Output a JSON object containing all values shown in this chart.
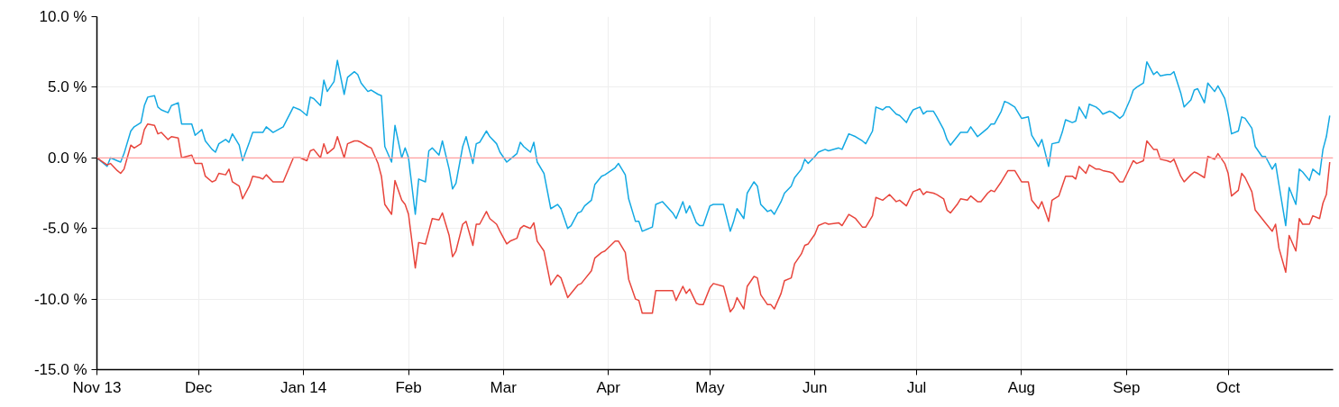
{
  "chart_data": {
    "type": "line",
    "x": [
      "2013-11-01",
      "2013-11-04",
      "2013-11-05",
      "2013-11-07",
      "2013-11-08",
      "2013-11-09",
      "2013-11-11",
      "2013-11-12",
      "2013-11-14",
      "2013-11-15",
      "2013-11-16",
      "2013-11-18",
      "2013-11-19",
      "2013-11-20",
      "2013-11-22",
      "2013-11-23",
      "2013-11-25",
      "2013-11-26",
      "2013-11-29",
      "2013-11-30",
      "2013-12-02",
      "2013-12-03",
      "2013-12-05",
      "2013-12-06",
      "2013-12-07",
      "2013-12-09",
      "2013-12-10",
      "2013-12-11",
      "2013-12-13",
      "2013-12-14",
      "2013-12-16",
      "2013-12-17",
      "2013-12-19",
      "2013-12-20",
      "2013-12-21",
      "2013-12-23",
      "2013-12-26",
      "2013-12-29",
      "2013-12-31",
      "2014-01-02",
      "2014-01-03",
      "2014-01-04",
      "2014-01-06",
      "2014-01-07",
      "2014-01-08",
      "2014-01-10",
      "2014-01-11",
      "2014-01-13",
      "2014-01-14",
      "2014-01-16",
      "2014-01-17",
      "2014-01-18",
      "2014-01-20",
      "2014-01-21",
      "2014-01-23",
      "2014-01-24",
      "2014-01-25",
      "2014-01-27",
      "2014-01-28",
      "2014-01-30",
      "2014-01-31",
      "2014-02-01",
      "2014-02-03",
      "2014-02-04",
      "2014-02-06",
      "2014-02-07",
      "2014-02-08",
      "2014-02-10",
      "2014-02-11",
      "2014-02-13",
      "2014-02-14",
      "2014-02-15",
      "2014-02-17",
      "2014-02-18",
      "2014-02-20",
      "2014-02-21",
      "2014-02-22",
      "2014-02-24",
      "2014-02-25",
      "2014-02-27",
      "2014-02-28",
      "2014-03-02",
      "2014-03-03",
      "2014-03-05",
      "2014-03-06",
      "2014-03-07",
      "2014-03-09",
      "2014-03-10",
      "2014-03-11",
      "2014-03-13",
      "2014-03-15",
      "2014-03-17",
      "2014-03-18",
      "2014-03-20",
      "2014-03-21",
      "2014-03-23",
      "2014-03-24",
      "2014-03-25",
      "2014-03-27",
      "2014-03-28",
      "2014-03-30",
      "2014-03-31",
      "2014-04-03",
      "2014-04-04",
      "2014-04-06",
      "2014-04-07",
      "2014-04-09",
      "2014-04-10",
      "2014-04-11",
      "2014-04-14",
      "2014-04-15",
      "2014-04-17",
      "2014-04-20",
      "2014-04-21",
      "2014-04-23",
      "2014-04-24",
      "2014-04-25",
      "2014-04-27",
      "2014-04-28",
      "2014-04-29",
      "2014-05-01",
      "2014-05-02",
      "2014-05-05",
      "2014-05-07",
      "2014-05-08",
      "2014-05-09",
      "2014-05-11",
      "2014-05-12",
      "2014-05-14",
      "2014-05-15",
      "2014-05-16",
      "2014-05-18",
      "2014-05-19",
      "2014-05-20",
      "2014-05-22",
      "2014-05-23",
      "2014-05-25",
      "2014-05-26",
      "2014-05-28",
      "2014-05-29",
      "2014-05-30",
      "2014-06-01",
      "2014-06-02",
      "2014-06-04",
      "2014-06-05",
      "2014-06-08",
      "2014-06-09",
      "2014-06-11",
      "2014-06-13",
      "2014-06-15",
      "2014-06-16",
      "2014-06-18",
      "2014-06-19",
      "2014-06-21",
      "2014-06-22",
      "2014-06-23",
      "2014-06-25",
      "2014-06-26",
      "2014-06-28",
      "2014-06-29",
      "2014-06-30",
      "2014-07-02",
      "2014-07-03",
      "2014-07-04",
      "2014-07-06",
      "2014-07-07",
      "2014-07-09",
      "2014-07-10",
      "2014-07-11",
      "2014-07-13",
      "2014-07-14",
      "2014-07-16",
      "2014-07-17",
      "2014-07-19",
      "2014-07-20",
      "2014-07-22",
      "2014-07-23",
      "2014-07-24",
      "2014-07-26",
      "2014-07-27",
      "2014-07-28",
      "2014-07-30",
      "2014-08-01",
      "2014-08-03",
      "2014-08-04",
      "2014-08-06",
      "2014-08-07",
      "2014-08-09",
      "2014-08-10",
      "2014-08-12",
      "2014-08-13",
      "2014-08-14",
      "2014-08-16",
      "2014-08-17",
      "2014-08-18",
      "2014-08-20",
      "2014-08-21",
      "2014-08-23",
      "2014-08-24",
      "2014-08-25",
      "2014-08-27",
      "2014-08-28",
      "2014-08-30",
      "2014-08-31",
      "2014-09-02",
      "2014-09-03",
      "2014-09-04",
      "2014-09-06",
      "2014-09-07",
      "2014-09-09",
      "2014-09-10",
      "2014-09-11",
      "2014-09-13",
      "2014-09-14",
      "2014-09-15",
      "2014-09-17",
      "2014-09-18",
      "2014-09-20",
      "2014-09-21",
      "2014-09-22",
      "2014-09-24",
      "2014-09-25",
      "2014-09-27",
      "2014-09-28",
      "2014-09-30",
      "2014-10-01",
      "2014-10-02",
      "2014-10-04",
      "2014-10-05",
      "2014-10-06",
      "2014-10-08",
      "2014-10-09",
      "2014-10-11",
      "2014-10-12",
      "2014-10-14",
      "2014-10-15",
      "2014-10-16",
      "2014-10-18",
      "2014-10-19",
      "2014-10-21",
      "2014-10-22",
      "2014-10-23",
      "2014-10-25",
      "2014-10-26",
      "2014-10-28",
      "2014-10-29",
      "2014-10-30",
      "2014-10-31"
    ],
    "series": [
      {
        "color": "#14a9e3",
        "values": [
          0,
          -0.6,
          0,
          -0.2,
          -0.3,
          0.3,
          1.9,
          2.2,
          2.5,
          3.7,
          4.3,
          4.4,
          3.6,
          3.4,
          3.2,
          3.7,
          3.9,
          2.4,
          2.4,
          1.6,
          2.0,
          1.2,
          0.6,
          0.4,
          1.0,
          1.3,
          1.1,
          1.7,
          0.9,
          -0.2,
          1.1,
          1.8,
          1.8,
          1.8,
          2.2,
          1.8,
          2.2,
          3.6,
          3.4,
          3.0,
          4.3,
          4.2,
          3.7,
          5.5,
          4.7,
          5.4,
          6.9,
          4.5,
          5.7,
          6.1,
          5.9,
          5.3,
          4.7,
          4.8,
          4.5,
          4.4,
          0.8,
          -0.3,
          2.3,
          0.0,
          0.7,
          0.0,
          -4.0,
          -1.5,
          -1.7,
          0.5,
          0.7,
          0.2,
          1.2,
          -0.8,
          -2.2,
          -1.8,
          0.8,
          1.5,
          -0.4,
          1.0,
          1.1,
          1.9,
          1.5,
          1.0,
          0.4,
          -0.3,
          -0.1,
          0.3,
          1.1,
          0.8,
          0.4,
          1.1,
          -0.3,
          -1.1,
          -3.6,
          -3.3,
          -3.6,
          -5.0,
          -4.8,
          -3.9,
          -3.8,
          -3.4,
          -3.0,
          -1.9,
          -1.3,
          -1.2,
          -0.7,
          -0.4,
          -1.2,
          -2.9,
          -4.5,
          -4.5,
          -5.2,
          -4.9,
          -3.3,
          -3.1,
          -3.9,
          -4.3,
          -3.1,
          -3.9,
          -3.4,
          -4.6,
          -4.8,
          -4.8,
          -3.4,
          -3.3,
          -3.3,
          -5.2,
          -4.5,
          -3.6,
          -4.3,
          -2.5,
          -1.7,
          -2.0,
          -3.3,
          -3.8,
          -3.7,
          -4.0,
          -3.1,
          -2.5,
          -2.0,
          -1.4,
          -0.8,
          -0.1,
          -0.4,
          0.1,
          0.4,
          0.6,
          0.5,
          0.7,
          0.6,
          1.7,
          1.5,
          1.2,
          1.0,
          1.9,
          3.6,
          3.4,
          3.6,
          3.6,
          3.1,
          3.0,
          2.5,
          3.0,
          3.4,
          3.6,
          3.1,
          3.3,
          3.3,
          2.9,
          2.0,
          1.3,
          0.9,
          1.5,
          1.8,
          1.8,
          2.2,
          1.5,
          1.7,
          2.1,
          2.4,
          2.4,
          3.3,
          4.0,
          3.9,
          3.6,
          2.8,
          2.9,
          1.6,
          0.8,
          1.3,
          -0.6,
          1.0,
          1.1,
          1.8,
          2.7,
          2.5,
          2.6,
          3.6,
          2.8,
          3.8,
          3.6,
          3.4,
          3.1,
          3.3,
          3.2,
          2.8,
          3.0,
          4.1,
          4.8,
          5.0,
          5.3,
          6.8,
          5.9,
          6.1,
          5.8,
          5.9,
          5.9,
          6.1,
          4.6,
          3.6,
          4.1,
          4.8,
          4.9,
          3.9,
          5.3,
          4.7,
          5.1,
          4.2,
          3.1,
          1.7,
          1.9,
          2.9,
          2.8,
          2.1,
          0.8,
          0.1,
          0.1,
          -0.8,
          -0.4,
          -1.9,
          -4.8,
          -2.1,
          -3.3,
          -0.8,
          -1.0,
          -1.6,
          -0.8,
          -1.2,
          0.6,
          1.5,
          3.0
        ]
      },
      {
        "color": "#e8453c",
        "values": [
          0,
          -0.5,
          -0.4,
          -0.9,
          -1.1,
          -0.8,
          0.9,
          0.7,
          1.0,
          2.0,
          2.4,
          2.3,
          1.7,
          1.8,
          1.3,
          1.5,
          1.4,
          0,
          0.2,
          -0.4,
          -0.4,
          -1.3,
          -1.7,
          -1.6,
          -1.1,
          -1.2,
          -0.8,
          -1.7,
          -2.0,
          -2.9,
          -2.0,
          -1.3,
          -1.4,
          -1.5,
          -1.2,
          -1.7,
          -1.7,
          0,
          0,
          -0.2,
          0.5,
          0.6,
          0,
          1.0,
          0.3,
          0.7,
          1.5,
          0,
          1.0,
          1.2,
          1.2,
          1.1,
          0.8,
          0.7,
          -0.4,
          -1.3,
          -3.3,
          -4.0,
          -1.6,
          -3.0,
          -3.3,
          -4.0,
          -7.8,
          -6.0,
          -6.1,
          -5.2,
          -4.3,
          -4.4,
          -3.9,
          -5.5,
          -7.0,
          -6.6,
          -4.7,
          -4.5,
          -6.2,
          -4.7,
          -4.7,
          -3.8,
          -4.3,
          -4.7,
          -5.2,
          -6.1,
          -5.9,
          -5.7,
          -5.0,
          -4.8,
          -5.0,
          -4.6,
          -5.9,
          -6.6,
          -9.0,
          -8.3,
          -8.5,
          -9.9,
          -9.6,
          -9.0,
          -8.9,
          -8.6,
          -8.0,
          -7.1,
          -6.7,
          -6.6,
          -5.9,
          -5.9,
          -6.7,
          -8.6,
          -10.0,
          -10.1,
          -11.0,
          -11.0,
          -9.4,
          -9.4,
          -9.4,
          -10.1,
          -9.1,
          -9.6,
          -9.3,
          -10.3,
          -10.4,
          -10.4,
          -9.2,
          -8.9,
          -9.1,
          -10.9,
          -10.6,
          -9.9,
          -10.7,
          -9.1,
          -8.4,
          -8.5,
          -9.7,
          -10.4,
          -10.4,
          -10.7,
          -9.6,
          -8.7,
          -8.5,
          -7.5,
          -6.8,
          -6.2,
          -6.1,
          -5.4,
          -4.8,
          -4.6,
          -4.7,
          -4.6,
          -4.8,
          -4.0,
          -4.3,
          -4.9,
          -4.9,
          -4.1,
          -2.8,
          -3.0,
          -2.8,
          -2.6,
          -3.1,
          -3.0,
          -3.4,
          -2.9,
          -2.4,
          -2.2,
          -2.6,
          -2.4,
          -2.5,
          -2.6,
          -2.9,
          -3.7,
          -3.9,
          -3.3,
          -2.9,
          -3.0,
          -2.7,
          -3.1,
          -3.1,
          -2.5,
          -2.3,
          -2.4,
          -1.7,
          -1.3,
          -0.9,
          -0.9,
          -1.7,
          -1.7,
          -3.0,
          -3.6,
          -3.1,
          -4.5,
          -3.0,
          -2.7,
          -2.0,
          -1.3,
          -1.3,
          -1.5,
          -0.6,
          -1.1,
          -0.5,
          -0.8,
          -0.8,
          -0.9,
          -1.0,
          -1.1,
          -1.7,
          -1.7,
          -0.7,
          -0.2,
          -0.4,
          -0.2,
          1.2,
          0.6,
          0.6,
          -0.1,
          -0.2,
          -0.3,
          -0.1,
          -1.3,
          -1.7,
          -1.2,
          -1.0,
          -1.1,
          -1.4,
          0.1,
          -0.1,
          0.3,
          -0.4,
          -1.1,
          -2.7,
          -2.3,
          -1.1,
          -1.4,
          -2.4,
          -3.7,
          -4.3,
          -4.6,
          -5.2,
          -4.7,
          -6.4,
          -8.1,
          -5.5,
          -6.6,
          -4.3,
          -4.7,
          -4.7,
          -4.1,
          -4.3,
          -3.2,
          -2.6,
          -0.3
        ]
      }
    ],
    "xlim": [
      "2013-11-01",
      "2014-11-01"
    ],
    "xticks": [
      {
        "value": "2013-11-01",
        "label": "Nov 13"
      },
      {
        "value": "2013-12-01",
        "label": "Dec"
      },
      {
        "value": "2014-01-01",
        "label": "Jan 14"
      },
      {
        "value": "2014-02-01",
        "label": "Feb"
      },
      {
        "value": "2014-03-01",
        "label": "Mar"
      },
      {
        "value": "2014-04-01",
        "label": "Apr"
      },
      {
        "value": "2014-05-01",
        "label": "May"
      },
      {
        "value": "2014-06-01",
        "label": "Jun"
      },
      {
        "value": "2014-07-01",
        "label": "Jul"
      },
      {
        "value": "2014-08-01",
        "label": "Aug"
      },
      {
        "value": "2014-09-01",
        "label": "Sep"
      },
      {
        "value": "2014-10-01",
        "label": "Oct"
      }
    ],
    "ylim": [
      -15,
      10
    ],
    "yticks": [
      {
        "value": -15,
        "label": "-15.0 %"
      },
      {
        "value": -10,
        "label": "-10.0 %"
      },
      {
        "value": -5,
        "label": "-5.0 %"
      },
      {
        "value": 0,
        "label": "0.0 %"
      },
      {
        "value": 5,
        "label": "5.0 %"
      },
      {
        "value": 10,
        "label": "10.0 %"
      }
    ],
    "ref_lines": [
      {
        "axis": "y",
        "value": 0,
        "color": "#ff9e9e"
      }
    ],
    "grid": true,
    "line_style": "solid"
  }
}
